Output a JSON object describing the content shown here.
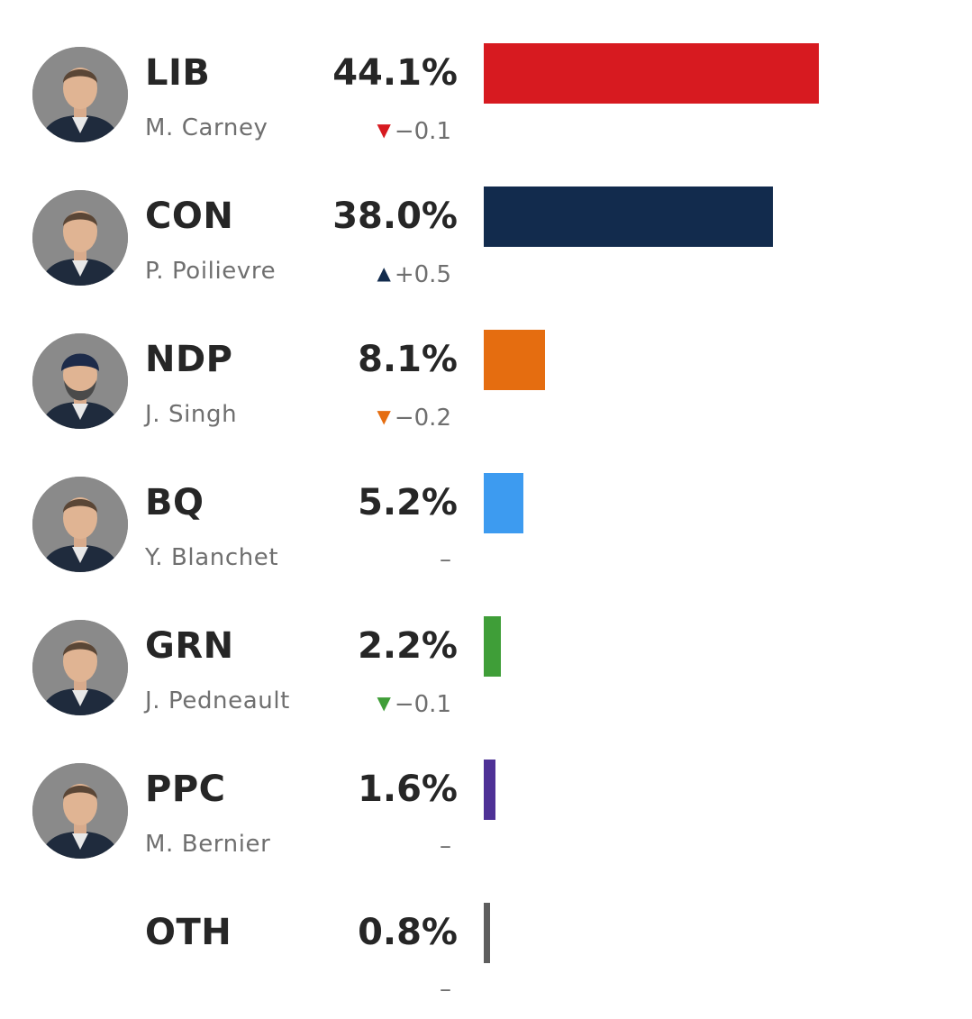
{
  "chart_data": {
    "type": "bar",
    "orientation": "horizontal",
    "value_unit": "%",
    "scale": {
      "max_value": 44.1
    },
    "categories": [
      "LIB",
      "CON",
      "NDP",
      "BQ",
      "GRN",
      "PPC",
      "OTH"
    ],
    "values": [
      44.1,
      38.0,
      8.1,
      5.2,
      2.2,
      1.6,
      0.8
    ],
    "rows": [
      {
        "party": "LIB",
        "leader": "M. Carney",
        "value": 44.1,
        "value_label": "44.1%",
        "change": "−0.1",
        "direction": "down",
        "color": "#d71a20",
        "photo": "carney-photo"
      },
      {
        "party": "CON",
        "leader": "P. Poilievre",
        "value": 38.0,
        "value_label": "38.0%",
        "change": "+0.5",
        "direction": "up",
        "color": "#122b4d",
        "photo": "poilievre-photo"
      },
      {
        "party": "NDP",
        "leader": "J. Singh",
        "value": 8.1,
        "value_label": "8.1%",
        "change": "−0.2",
        "direction": "down",
        "color": "#e56d10",
        "photo": "singh-photo"
      },
      {
        "party": "BQ",
        "leader": "Y. Blanchet",
        "value": 5.2,
        "value_label": "5.2%",
        "change": "–",
        "direction": "none",
        "color": "#3d9bf0",
        "photo": "blanchet-photo"
      },
      {
        "party": "GRN",
        "leader": "J. Pedneault",
        "value": 2.2,
        "value_label": "2.2%",
        "change": "−0.1",
        "direction": "down",
        "color": "#3f9e38",
        "photo": "pedneault-photo"
      },
      {
        "party": "PPC",
        "leader": "M. Bernier",
        "value": 1.6,
        "value_label": "1.6%",
        "change": "–",
        "direction": "none",
        "color": "#4e3196",
        "photo": "bernier-photo"
      },
      {
        "party": "OTH",
        "leader": "",
        "value": 0.8,
        "value_label": "0.8%",
        "change": "–",
        "direction": "none",
        "color": "#5e5e5e",
        "photo": ""
      }
    ],
    "arrow_glyphs": {
      "up": "▲",
      "down": "▼"
    },
    "grid": false,
    "legend": "none"
  }
}
